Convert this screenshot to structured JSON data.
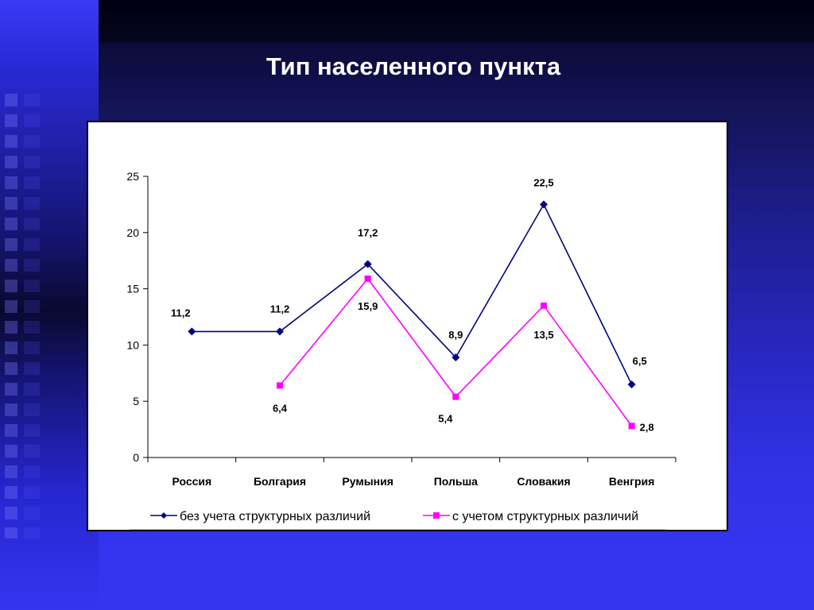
{
  "slide": {
    "title": "Тип населенного пункта"
  },
  "chart_data": {
    "type": "line",
    "categories": [
      "Россия",
      "Болгария",
      "Румыния",
      "Польша",
      "Словакия",
      "Венгрия"
    ],
    "series": [
      {
        "name": "без учета структурных различий",
        "values": [
          11.2,
          11.2,
          17.2,
          8.9,
          22.5,
          6.5
        ],
        "labels": [
          "11,2",
          "11,2",
          "17,2",
          "8,9",
          "22,5",
          "6,5"
        ],
        "color": "#000080",
        "marker": "diamond"
      },
      {
        "name": "с учетом структурных различий",
        "values": [
          null,
          6.4,
          15.9,
          5.4,
          13.5,
          2.8
        ],
        "labels": [
          null,
          "6,4",
          "15,9",
          "5,4",
          "13,5",
          "2,8"
        ],
        "color": "#ff00ff",
        "marker": "square"
      }
    ],
    "y_ticks": [
      "0",
      "5",
      "10",
      "15",
      "20",
      "25"
    ],
    "ylim": [
      0,
      25
    ],
    "grid": false,
    "legend_position": "bottom"
  }
}
